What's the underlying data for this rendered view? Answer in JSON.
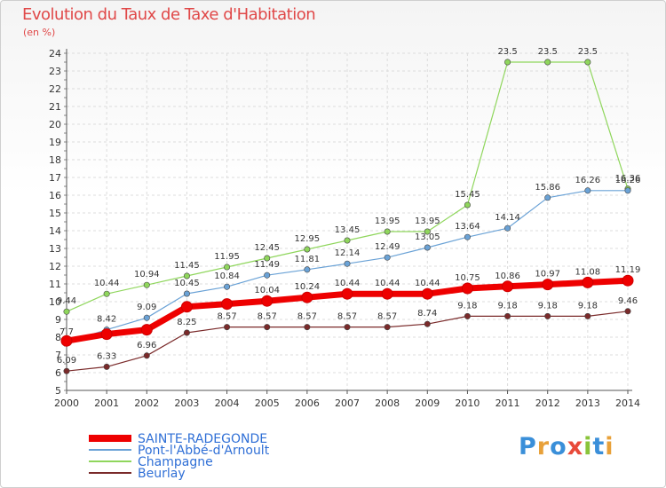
{
  "chart_data": {
    "type": "line",
    "title": "Evolution du Taux de Taxe d'Habitation",
    "subtitle": "(en %)",
    "x": [
      "2000",
      "2001",
      "2002",
      "2003",
      "2004",
      "2005",
      "2006",
      "2007",
      "2008",
      "2009",
      "2010",
      "2011",
      "2012",
      "2013",
      "2014"
    ],
    "ylim": [
      5,
      24
    ],
    "yticks": [
      5,
      6,
      7,
      8,
      9,
      10,
      11,
      12,
      13,
      14,
      15,
      16,
      17,
      18,
      19,
      20,
      21,
      22,
      23,
      24
    ],
    "grid": true,
    "legend_position": "bottom-left",
    "series": [
      {
        "name": "SAINTE-RADEGONDE",
        "color": "#ee0000",
        "values": [
          7.79,
          8.17,
          8.42,
          9.71,
          9.87,
          10.04,
          10.24,
          10.44,
          10.44,
          10.44,
          10.75,
          10.86,
          10.97,
          11.08,
          11.19
        ],
        "labels": [
          null,
          null,
          null,
          null,
          null,
          "10.04",
          "10.24",
          "10.44",
          "10.44",
          "10.44",
          "10.75",
          "10.86",
          "10.97",
          "11.08",
          "11.19"
        ]
      },
      {
        "name": "Pont-l'Abbé-d'Arnoult",
        "color": "#6aa2d6",
        "values": [
          7.7,
          8.42,
          9.09,
          10.45,
          10.84,
          11.49,
          11.81,
          12.14,
          12.49,
          13.05,
          13.64,
          14.14,
          15.86,
          16.26,
          16.26
        ],
        "labels": [
          "7.7",
          "8.42",
          "9.09",
          "10.45",
          "10.84",
          "11.49",
          "11.81",
          "12.14",
          "12.49",
          "13.05",
          "13.64",
          "14.14",
          "15.86",
          "16.26",
          "16.26"
        ]
      },
      {
        "name": "Champagne",
        "color": "#8fd65c",
        "values": [
          9.44,
          10.44,
          10.94,
          11.45,
          11.95,
          12.45,
          12.95,
          13.45,
          13.95,
          13.95,
          15.45,
          23.5,
          23.5,
          23.5,
          16.36
        ],
        "labels": [
          "9.44",
          "10.44",
          "10.94",
          "11.45",
          "11.95",
          "12.45",
          "12.95",
          "13.45",
          "13.95",
          "13.95",
          "15.45",
          "23.5",
          "23.5",
          "23.5",
          "16.36"
        ]
      },
      {
        "name": "Beurlay",
        "color": "#7a2a2a",
        "values": [
          6.09,
          6.33,
          6.96,
          8.25,
          8.57,
          8.57,
          8.57,
          8.57,
          8.57,
          8.74,
          9.18,
          9.18,
          9.18,
          9.18,
          9.46
        ],
        "labels": [
          "6.09",
          "6.33",
          "6.96",
          "8.25",
          "8.57",
          "8.57",
          "8.57",
          "8.57",
          "8.57",
          "8.74",
          "9.18",
          "9.18",
          "9.18",
          "9.18",
          "9.46"
        ]
      }
    ]
  },
  "logo": {
    "text": "Proxiti"
  }
}
